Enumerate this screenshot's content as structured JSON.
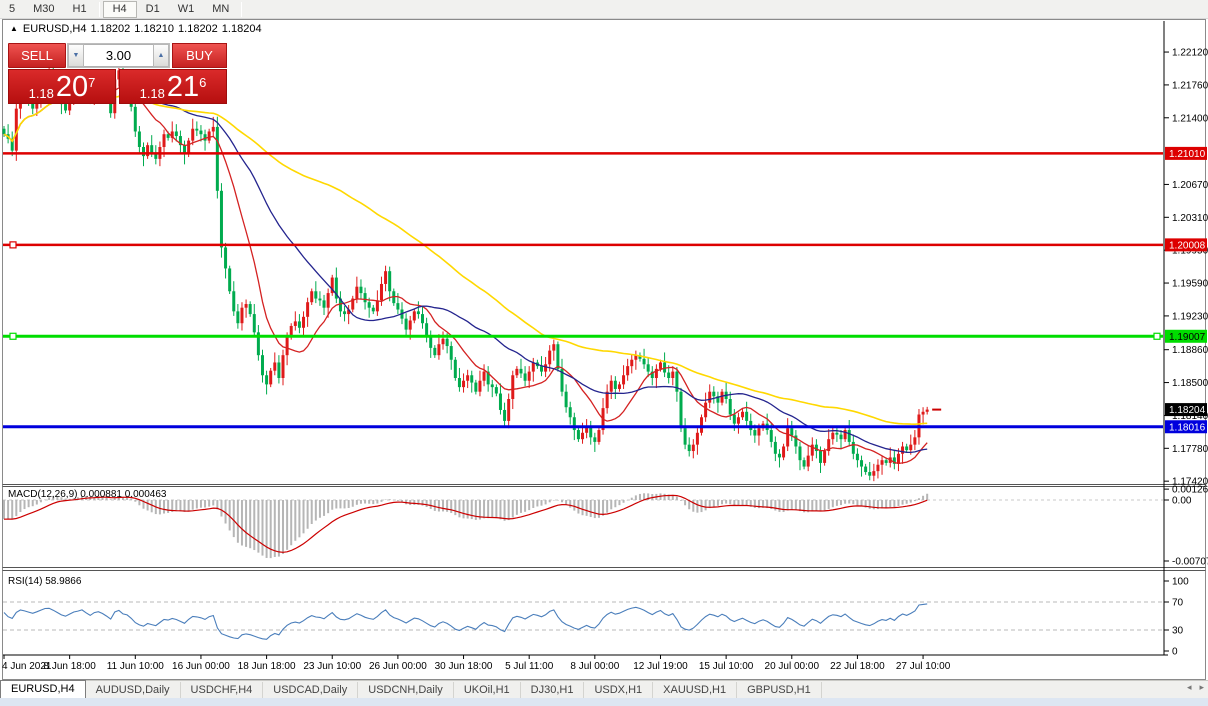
{
  "toolbar": {
    "timeframes": [
      "5",
      "M30",
      "H1",
      "H4",
      "D1",
      "W1",
      "MN"
    ],
    "active": "H4"
  },
  "icons": {
    "header_marker": "up-triangle",
    "volume_down": "down-triangle",
    "volume_up": "up-triangle",
    "tab_scroll_left": "left-arrow",
    "tab_scroll_right": "right-arrow"
  },
  "chart_header": {
    "symbol": "EURUSD,H4",
    "open": "1.18202",
    "high": "1.18210",
    "low": "1.18202",
    "close": "1.18204"
  },
  "trade_panel": {
    "sell_label": "SELL",
    "buy_label": "BUY",
    "volume": "3.00",
    "sell_price": {
      "small": "1.18",
      "big": "20",
      "sup": "7"
    },
    "buy_price": {
      "small": "1.18",
      "big": "21",
      "sup": "6"
    }
  },
  "price_scale": {
    "ticks": [
      {
        "t": "1.22120",
        "p": 1.2212
      },
      {
        "t": "1.21760",
        "p": 1.2176
      },
      {
        "t": "1.21400",
        "p": 1.214
      },
      {
        "t": "1.20670",
        "p": 1.2067
      },
      {
        "t": "1.20310",
        "p": 1.2031
      },
      {
        "t": "1.19950",
        "p": 1.1995
      },
      {
        "t": "1.19590",
        "p": 1.1959
      },
      {
        "t": "1.19230",
        "p": 1.1923
      },
      {
        "t": "1.18860",
        "p": 1.1886
      },
      {
        "t": "1.18500",
        "p": 1.185
      },
      {
        "t": "1.18140",
        "p": 1.1814
      },
      {
        "t": "1.17780",
        "p": 1.1778
      },
      {
        "t": "1.17420",
        "p": 1.1742
      }
    ]
  },
  "indicators": {
    "macd": {
      "label": "MACD(12,26,9) 0.000881 0.000463",
      "scale": [
        {
          "t": "0.00126",
          "v": 0.00126
        },
        {
          "t": "0.00",
          "v": 0
        },
        {
          "t": "-0.00707",
          "v": -0.00707
        }
      ]
    },
    "rsi": {
      "label": "RSI(14) 58.9866",
      "scale": [
        {
          "t": "100",
          "v": 100
        },
        {
          "t": "70",
          "v": 70
        },
        {
          "t": "30",
          "v": 30
        },
        {
          "t": "0",
          "v": 0
        }
      ]
    }
  },
  "time_axis": {
    "labels": [
      "4 Jun 2021",
      "8 Jun 18:00",
      "11 Jun 10:00",
      "16 Jun 00:00",
      "18 Jun 18:00",
      "23 Jun 10:00",
      "26 Jun 00:00",
      "30 Jun 18:00",
      "5 Jul 11:00",
      "8 Jul 00:00",
      "12 Jul 19:00",
      "15 Jul 10:00",
      "20 Jul 00:00",
      "22 Jul 18:00",
      "27 Jul 10:00"
    ],
    "tick_every": 16
  },
  "tabs": {
    "items": [
      "EURUSD,H4",
      "AUDUSD,Daily",
      "USDCHF,H4",
      "USDCAD,Daily",
      "USDCNH,Daily",
      "UKOil,H1",
      "DJ30,H1",
      "USDX,H1",
      "XAUUSD,H1",
      "GBPUSD,H1"
    ],
    "active": "EURUSD,H4"
  },
  "colors": {
    "candle_up": "#df1a1a",
    "candle_down": "#00ab4e",
    "ma_fast": "#d42222",
    "ma_medium": "#24248e",
    "ma_slow": "#ffd800",
    "line_red": "#dd0000",
    "line_green": "#00dd00",
    "line_blue": "#0000dd",
    "macd_bar": "#b6b6b6",
    "macd_signal": "#cc0000",
    "rsi_line": "#4a7ebb",
    "label_black_bg": "#000000"
  },
  "chart_data": {
    "type": "candlestick",
    "symbol": "EURUSD",
    "timeframe": "H4",
    "ylim": [
      1.174,
      1.2246
    ],
    "first_open": 1.2128,
    "closes": [
      1.2122,
      1.2117,
      1.2104,
      1.215,
      1.2172,
      1.2166,
      1.2158,
      1.215,
      1.2162,
      1.2175,
      1.2188,
      1.219,
      1.218,
      1.2168,
      1.2155,
      1.2148,
      1.216,
      1.2172,
      1.2178,
      1.2185,
      1.2172,
      1.216,
      1.2175,
      1.218,
      1.2172,
      1.216,
      1.2145,
      1.2182,
      1.2192,
      1.2175,
      1.217,
      1.2152,
      1.2125,
      1.2108,
      1.2098,
      1.211,
      1.2102,
      1.2095,
      1.2108,
      1.2122,
      1.2118,
      1.2125,
      1.212,
      1.211,
      1.21,
      1.2115,
      1.2128,
      1.2126,
      1.2122,
      1.2115,
      1.2125,
      1.213,
      1.206,
      1.1998,
      1.1975,
      1.195,
      1.1928,
      1.1915,
      1.1932,
      1.1936,
      1.1925,
      1.1905,
      1.188,
      1.1858,
      1.1848,
      1.1863,
      1.1872,
      1.1855,
      1.188,
      1.19,
      1.1912,
      1.1917,
      1.191,
      1.1922,
      1.1938,
      1.195,
      1.1942,
      1.194,
      1.1932,
      1.1948,
      1.1965,
      1.1942,
      1.1928,
      1.1925,
      1.193,
      1.1942,
      1.1955,
      1.1948,
      1.1938,
      1.1932,
      1.1928,
      1.194,
      1.1958,
      1.1972,
      1.195,
      1.1937,
      1.193,
      1.192,
      1.1908,
      1.1918,
      1.1928,
      1.1925,
      1.1915,
      1.1902,
      1.1888,
      1.188,
      1.1892,
      1.1898,
      1.189,
      1.1875,
      1.1855,
      1.1845,
      1.1852,
      1.1858,
      1.185,
      1.184,
      1.1852,
      1.1862,
      1.1848,
      1.1845,
      1.1838,
      1.182,
      1.1808,
      1.1832,
      1.1858,
      1.1865,
      1.186,
      1.1852,
      1.1862,
      1.1872,
      1.1868,
      1.1862,
      1.187,
      1.1885,
      1.1892,
      1.1865,
      1.184,
      1.1823,
      1.1812,
      1.1798,
      1.1788,
      1.1795,
      1.1802,
      1.179,
      1.1785,
      1.1798,
      1.1822,
      1.184,
      1.1852,
      1.1843,
      1.1848,
      1.1858,
      1.1868,
      1.1875,
      1.188,
      1.1876,
      1.187,
      1.1862,
      1.1855,
      1.1865,
      1.1872,
      1.1861,
      1.1855,
      1.1862,
      1.184,
      1.18,
      1.1782,
      1.1775,
      1.1782,
      1.1795,
      1.1812,
      1.1828,
      1.184,
      1.1835,
      1.1828,
      1.184,
      1.1832,
      1.1815,
      1.1805,
      1.1812,
      1.1818,
      1.1808,
      1.1798,
      1.1792,
      1.18,
      1.1805,
      1.1798,
      1.1785,
      1.1772,
      1.1768,
      1.178,
      1.18,
      1.1792,
      1.178,
      1.1765,
      1.1758,
      1.177,
      1.1782,
      1.1775,
      1.1762,
      1.1775,
      1.1788,
      1.1795,
      1.1793,
      1.1788,
      1.1798,
      1.1785,
      1.1772,
      1.1765,
      1.1758,
      1.1752,
      1.1748,
      1.1753,
      1.176,
      1.1765,
      1.1762,
      1.1768,
      1.1761,
      1.1772,
      1.178,
      1.1776,
      1.1782,
      1.179,
      1.1815,
      1.1818,
      1.18204
    ],
    "hlines": [
      {
        "price": 1.2101,
        "label": "1.21010",
        "color": "#dd0000",
        "text_color": "#ffffff",
        "width": 2.5,
        "handles": []
      },
      {
        "price": 1.20008,
        "label": "1.20008",
        "color": "#dd0000",
        "text_color": "#ffffff",
        "width": 2.5,
        "handles": [
          "left"
        ]
      },
      {
        "price": 1.19007,
        "label": "1.19007",
        "color": "#00dd00",
        "text_color": "#000000",
        "width": 3,
        "handles": [
          "left",
          "right"
        ]
      },
      {
        "price": 1.18016,
        "label": "1.18016",
        "color": "#0000dd",
        "text_color": "#ffffff",
        "width": 3,
        "handles": []
      }
    ],
    "current_price": {
      "value": 1.18204,
      "label": "1.18204"
    },
    "moving_averages": [
      {
        "name": "fast",
        "period": 12,
        "color": "#d42222"
      },
      {
        "name": "medium",
        "period": 34,
        "color": "#24248e"
      },
      {
        "name": "slow",
        "period": 80,
        "color": "#ffd800"
      }
    ],
    "macd": {
      "fast": 12,
      "slow": 26,
      "signal": 9,
      "value": 0.000881,
      "signal_value": 0.000463,
      "ylim": [
        -0.00776,
        0.00139
      ]
    },
    "rsi": {
      "period": 14,
      "value": 58.9866,
      "levels": [
        70,
        30
      ],
      "ylim": [
        0,
        100
      ]
    }
  }
}
